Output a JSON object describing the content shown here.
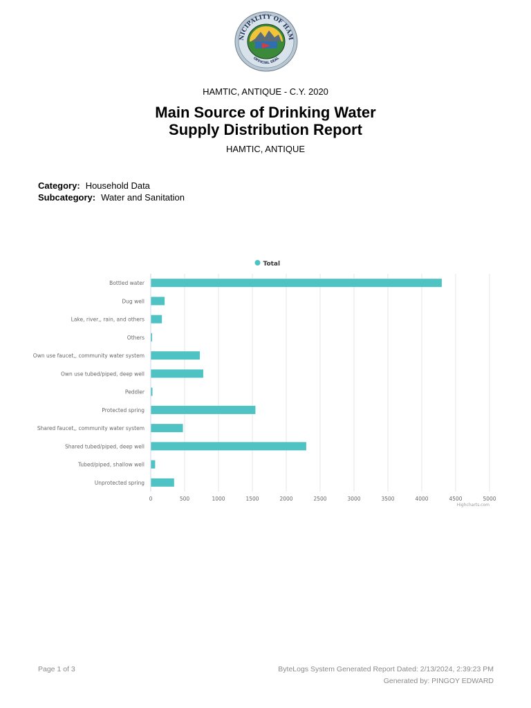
{
  "header": {
    "seal_text_top": "MUNICIPALITY OF HAMTIC",
    "seal_text_bottom": "OFFICIAL SEAL",
    "top_caption": "HAMTIC, ANTIQUE - C.Y. 2020",
    "title_line1": "Main Source of Drinking Water",
    "title_line2": "Supply Distribution Report",
    "sub_caption": "HAMTIC, ANTIQUE"
  },
  "meta": {
    "category_label": "Category:",
    "category_value": "Household Data",
    "subcategory_label": "Subcategory:",
    "subcategory_value": "Water and Sanitation"
  },
  "chart_data": {
    "type": "bar",
    "orientation": "horizontal",
    "title": "",
    "xlabel": "",
    "ylabel": "",
    "legend_position": "top-center",
    "grid": true,
    "categories": [
      "Bottled water",
      "Dug well",
      "Lake, river,, rain, and others",
      "Others",
      "Own use faucet,, community water system",
      "Own use tubed/piped, deep well",
      "Peddler",
      "Protected spring",
      "Shared faucet,, community water system",
      "Shared tubed/piped, deep well",
      "Tubed/piped, shallow well",
      "Unprotected spring"
    ],
    "series": [
      {
        "name": "Total",
        "values": [
          4290,
          200,
          160,
          10,
          720,
          770,
          20,
          1540,
          470,
          2290,
          60,
          340
        ]
      }
    ],
    "xlim": [
      0,
      5000
    ],
    "ticks": [
      "0",
      "500",
      "1000",
      "1500",
      "2000",
      "2500",
      "3000",
      "3500",
      "4000",
      "4500",
      "5000"
    ],
    "credit": "Highcharts.com",
    "colors": {
      "bar": "#4fc3c3",
      "grid": "#e6e6e6",
      "axis_text": "#666666"
    }
  },
  "footer": {
    "page": "Page 1 of 3",
    "generated_date": "ByteLogs System Generated Report Dated: 2/13/2024, 2:39:23 PM",
    "generated_by": "Generated by: PINGOY EDWARD"
  }
}
